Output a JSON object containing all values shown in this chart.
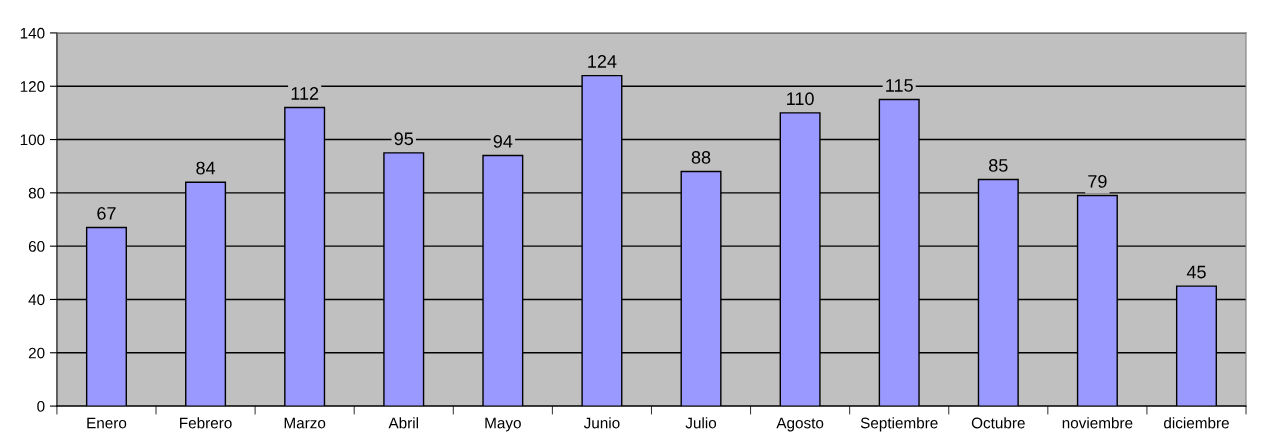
{
  "chart_data": {
    "type": "bar",
    "categories": [
      "Enero",
      "Febrero",
      "Marzo",
      "Abril",
      "Mayo",
      "Junio",
      "Julio",
      "Agosto",
      "Septiembre",
      "Octubre",
      "noviembre",
      "diciembre"
    ],
    "values": [
      67,
      84,
      112,
      95,
      94,
      124,
      88,
      110,
      115,
      85,
      79,
      45
    ],
    "color": "#9999ff",
    "ylim": [
      0,
      140
    ],
    "yticks": [
      0,
      20,
      40,
      60,
      80,
      100,
      120,
      140
    ],
    "grid": "y",
    "data_labels": true
  }
}
